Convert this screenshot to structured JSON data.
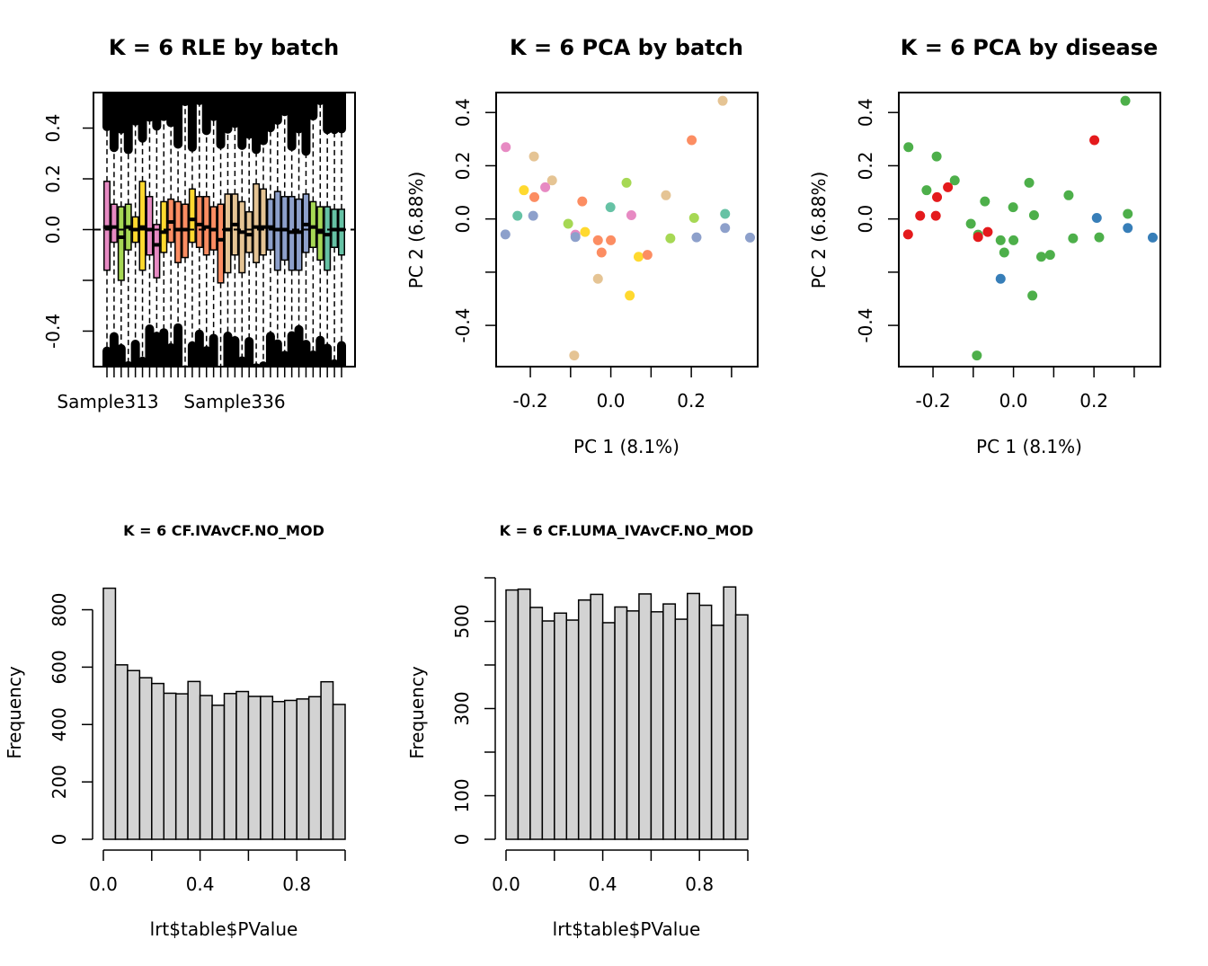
{
  "chart_data": [
    {
      "type": "boxplot",
      "title": "K = 6 RLE by batch",
      "xlabel": "",
      "ylabel": "",
      "ylim": [
        -0.54,
        0.54
      ],
      "yticks": [
        -0.4,
        -0.2,
        0.0,
        0.2,
        0.4
      ],
      "ytick_labels": [
        "-0.4",
        "",
        "0.0",
        "0.2",
        "0.4"
      ],
      "xtick_labels": [
        "Sample313",
        "Sample336"
      ],
      "reference_line": 0.0,
      "boxes": [
        {
          "color": "#E78AC3",
          "q1": -0.16,
          "median": 0.01,
          "q3": 0.19
        },
        {
          "color": "#E78AC3",
          "q1": -0.05,
          "median": 0.01,
          "q3": 0.1
        },
        {
          "color": "#A6D854",
          "q1": -0.2,
          "median": -0.03,
          "q3": 0.09
        },
        {
          "color": "#A6D854",
          "q1": -0.08,
          "median": 0.01,
          "q3": 0.1
        },
        {
          "color": "#FFD92F",
          "q1": -0.05,
          "median": 0.0,
          "q3": 0.05
        },
        {
          "color": "#FFD92F",
          "q1": -0.16,
          "median": 0.01,
          "q3": 0.19
        },
        {
          "color": "#E78AC3",
          "q1": -0.1,
          "median": 0.0,
          "q3": 0.13
        },
        {
          "color": "#E78AC3",
          "q1": -0.19,
          "median": -0.06,
          "q3": 0.02
        },
        {
          "color": "#FFD92F",
          "q1": -0.09,
          "median": -0.01,
          "q3": 0.11
        },
        {
          "color": "#FC8D62",
          "q1": -0.05,
          "median": 0.03,
          "q3": 0.12
        },
        {
          "color": "#FC8D62",
          "q1": -0.13,
          "median": 0.0,
          "q3": 0.11
        },
        {
          "color": "#FC8D62",
          "q1": -0.11,
          "median": 0.0,
          "q3": 0.1
        },
        {
          "color": "#FFD92F",
          "q1": -0.05,
          "median": 0.04,
          "q3": 0.16
        },
        {
          "color": "#FC8D62",
          "q1": -0.07,
          "median": 0.02,
          "q3": 0.13
        },
        {
          "color": "#FC8D62",
          "q1": -0.1,
          "median": 0.01,
          "q3": 0.13
        },
        {
          "color": "#FC8D62",
          "q1": -0.08,
          "median": 0.0,
          "q3": 0.09
        },
        {
          "color": "#FC8D62",
          "q1": -0.21,
          "median": -0.04,
          "q3": 0.1
        },
        {
          "color": "#E5C494",
          "q1": -0.17,
          "median": 0.0,
          "q3": 0.14
        },
        {
          "color": "#E5C494",
          "q1": -0.1,
          "median": 0.02,
          "q3": 0.14
        },
        {
          "color": "#E5C494",
          "q1": -0.17,
          "median": -0.01,
          "q3": 0.11
        },
        {
          "color": "#E5C494",
          "q1": -0.09,
          "median": -0.02,
          "q3": 0.07
        },
        {
          "color": "#E5C494",
          "q1": -0.13,
          "median": 0.01,
          "q3": 0.18
        },
        {
          "color": "#E5C494",
          "q1": -0.1,
          "median": 0.01,
          "q3": 0.16
        },
        {
          "color": "#8DA0CB",
          "q1": -0.08,
          "median": 0.01,
          "q3": 0.12
        },
        {
          "color": "#8DA0CB",
          "q1": -0.16,
          "median": 0.0,
          "q3": 0.15
        },
        {
          "color": "#8DA0CB",
          "q1": -0.12,
          "median": 0.0,
          "q3": 0.13
        },
        {
          "color": "#8DA0CB",
          "q1": -0.16,
          "median": -0.01,
          "q3": 0.13
        },
        {
          "color": "#8DA0CB",
          "q1": -0.16,
          "median": -0.01,
          "q3": 0.12
        },
        {
          "color": "#8DA0CB",
          "q1": -0.09,
          "median": 0.02,
          "q3": 0.14
        },
        {
          "color": "#A6D854",
          "q1": -0.07,
          "median": 0.01,
          "q3": 0.11
        },
        {
          "color": "#A6D854",
          "q1": -0.12,
          "median": -0.01,
          "q3": 0.09
        },
        {
          "color": "#66C2A5",
          "q1": -0.16,
          "median": -0.02,
          "q3": 0.09
        },
        {
          "color": "#66C2A5",
          "q1": -0.07,
          "median": 0.0,
          "q3": 0.08
        },
        {
          "color": "#66C2A5",
          "q1": -0.1,
          "median": 0.0,
          "q3": 0.08
        }
      ]
    },
    {
      "type": "scatter",
      "title": "K = 6 PCA by batch",
      "xlabel": "PC 1 (8.1%)",
      "ylabel": "PC 2 (6.88%)",
      "xlim": [
        -0.285,
        0.365
      ],
      "ylim": [
        -0.555,
        0.475
      ],
      "xticks": [
        -0.2,
        0.0,
        0.2
      ],
      "xtick_labels": [
        "-0.2",
        "0.0",
        "0.2"
      ],
      "yticks": [
        -0.4,
        -0.2,
        0.0,
        0.2,
        0.4
      ],
      "ytick_labels": [
        "-0.4",
        "",
        "0.0",
        "0.2",
        "0.4"
      ],
      "points": [
        {
          "x": 0.278,
          "y": 0.444,
          "color": "#E5C494"
        },
        {
          "x": 0.201,
          "y": 0.296,
          "color": "#FC8D62"
        },
        {
          "x": -0.261,
          "y": 0.27,
          "color": "#E78AC3"
        },
        {
          "x": -0.191,
          "y": 0.235,
          "color": "#E5C494"
        },
        {
          "x": -0.146,
          "y": 0.145,
          "color": "#E5C494"
        },
        {
          "x": 0.039,
          "y": 0.136,
          "color": "#A6D854"
        },
        {
          "x": -0.216,
          "y": 0.108,
          "color": "#FFD92F"
        },
        {
          "x": -0.163,
          "y": 0.119,
          "color": "#E78AC3"
        },
        {
          "x": -0.19,
          "y": 0.082,
          "color": "#FC8D62"
        },
        {
          "x": 0.137,
          "y": 0.089,
          "color": "#E5C494"
        },
        {
          "x": -0.071,
          "y": 0.066,
          "color": "#FC8D62"
        },
        {
          "x": -0.001,
          "y": 0.044,
          "color": "#66C2A5"
        },
        {
          "x": -0.232,
          "y": 0.012,
          "color": "#66C2A5"
        },
        {
          "x": -0.193,
          "y": 0.012,
          "color": "#8DA0CB"
        },
        {
          "x": 0.051,
          "y": 0.014,
          "color": "#E78AC3"
        },
        {
          "x": 0.207,
          "y": 0.004,
          "color": "#A6D854"
        },
        {
          "x": 0.284,
          "y": 0.019,
          "color": "#66C2A5"
        },
        {
          "x": -0.106,
          "y": -0.018,
          "color": "#A6D854"
        },
        {
          "x": -0.262,
          "y": -0.058,
          "color": "#8DA0CB"
        },
        {
          "x": -0.088,
          "y": -0.059,
          "color": "#E78AC3"
        },
        {
          "x": -0.088,
          "y": -0.068,
          "color": "#8DA0CB"
        },
        {
          "x": -0.064,
          "y": -0.049,
          "color": "#FFD92F"
        },
        {
          "x": -0.032,
          "y": -0.08,
          "color": "#FC8D62"
        },
        {
          "x": 0.0,
          "y": -0.08,
          "color": "#FC8D62"
        },
        {
          "x": -0.023,
          "y": -0.126,
          "color": "#FC8D62"
        },
        {
          "x": 0.148,
          "y": -0.073,
          "color": "#A6D854"
        },
        {
          "x": 0.213,
          "y": -0.069,
          "color": "#8DA0CB"
        },
        {
          "x": 0.284,
          "y": -0.034,
          "color": "#8DA0CB"
        },
        {
          "x": 0.346,
          "y": -0.07,
          "color": "#8DA0CB"
        },
        {
          "x": 0.069,
          "y": -0.142,
          "color": "#FFD92F"
        },
        {
          "x": 0.091,
          "y": -0.135,
          "color": "#FC8D62"
        },
        {
          "x": -0.032,
          "y": -0.225,
          "color": "#E5C494"
        },
        {
          "x": 0.047,
          "y": -0.288,
          "color": "#FFD92F"
        },
        {
          "x": -0.091,
          "y": -0.513,
          "color": "#E5C494"
        }
      ]
    },
    {
      "type": "scatter",
      "title": "K = 6 PCA by disease",
      "xlabel": "PC 1 (8.1%)",
      "ylabel": "PC 2 (6.88%)",
      "xlim": [
        -0.285,
        0.365
      ],
      "ylim": [
        -0.555,
        0.475
      ],
      "xticks": [
        -0.2,
        0.0,
        0.2
      ],
      "xtick_labels": [
        "-0.2",
        "0.0",
        "0.2"
      ],
      "yticks": [
        -0.4,
        -0.2,
        0.0,
        0.2,
        0.4
      ],
      "ytick_labels": [
        "-0.4",
        "",
        "0.0",
        "0.2",
        "0.4"
      ],
      "points": [
        {
          "x": 0.278,
          "y": 0.444,
          "color": "#4DAF4A"
        },
        {
          "x": 0.201,
          "y": 0.296,
          "color": "#E41A1C"
        },
        {
          "x": -0.261,
          "y": 0.27,
          "color": "#4DAF4A"
        },
        {
          "x": -0.191,
          "y": 0.235,
          "color": "#4DAF4A"
        },
        {
          "x": -0.146,
          "y": 0.145,
          "color": "#4DAF4A"
        },
        {
          "x": 0.039,
          "y": 0.136,
          "color": "#4DAF4A"
        },
        {
          "x": -0.216,
          "y": 0.108,
          "color": "#4DAF4A"
        },
        {
          "x": -0.163,
          "y": 0.119,
          "color": "#E41A1C"
        },
        {
          "x": -0.19,
          "y": 0.082,
          "color": "#E41A1C"
        },
        {
          "x": 0.137,
          "y": 0.089,
          "color": "#4DAF4A"
        },
        {
          "x": -0.071,
          "y": 0.066,
          "color": "#4DAF4A"
        },
        {
          "x": -0.001,
          "y": 0.044,
          "color": "#4DAF4A"
        },
        {
          "x": -0.232,
          "y": 0.012,
          "color": "#E41A1C"
        },
        {
          "x": -0.193,
          "y": 0.012,
          "color": "#E41A1C"
        },
        {
          "x": 0.051,
          "y": 0.014,
          "color": "#4DAF4A"
        },
        {
          "x": 0.207,
          "y": 0.004,
          "color": "#377EB8"
        },
        {
          "x": 0.284,
          "y": 0.019,
          "color": "#4DAF4A"
        },
        {
          "x": -0.106,
          "y": -0.018,
          "color": "#4DAF4A"
        },
        {
          "x": -0.262,
          "y": -0.058,
          "color": "#E41A1C"
        },
        {
          "x": -0.088,
          "y": -0.059,
          "color": "#4DAF4A"
        },
        {
          "x": -0.088,
          "y": -0.068,
          "color": "#E41A1C"
        },
        {
          "x": -0.064,
          "y": -0.049,
          "color": "#E41A1C"
        },
        {
          "x": -0.032,
          "y": -0.08,
          "color": "#4DAF4A"
        },
        {
          "x": 0.0,
          "y": -0.08,
          "color": "#4DAF4A"
        },
        {
          "x": -0.023,
          "y": -0.126,
          "color": "#4DAF4A"
        },
        {
          "x": 0.148,
          "y": -0.073,
          "color": "#4DAF4A"
        },
        {
          "x": 0.213,
          "y": -0.069,
          "color": "#4DAF4A"
        },
        {
          "x": 0.284,
          "y": -0.034,
          "color": "#377EB8"
        },
        {
          "x": 0.346,
          "y": -0.07,
          "color": "#377EB8"
        },
        {
          "x": 0.069,
          "y": -0.142,
          "color": "#4DAF4A"
        },
        {
          "x": 0.091,
          "y": -0.135,
          "color": "#4DAF4A"
        },
        {
          "x": -0.032,
          "y": -0.225,
          "color": "#377EB8"
        },
        {
          "x": 0.047,
          "y": -0.288,
          "color": "#4DAF4A"
        },
        {
          "x": -0.091,
          "y": -0.513,
          "color": "#4DAF4A"
        }
      ]
    },
    {
      "type": "bar",
      "subtype": "histogram",
      "title": "K = 6 CF.IVAvCF.NO_MOD",
      "xlabel": "lrt$table$PValue",
      "ylabel": "Frequency",
      "xlim": [
        0,
        1
      ],
      "ylim": [
        0,
        880
      ],
      "xticks": [
        0.0,
        0.2,
        0.4,
        0.6,
        0.8,
        1.0
      ],
      "xtick_labels": [
        "0.0",
        "",
        "0.4",
        "",
        "0.8",
        ""
      ],
      "yticks": [
        0,
        200,
        400,
        600,
        800
      ],
      "ytick_labels": [
        "0",
        "200",
        "400",
        "600",
        "800"
      ],
      "bin_width": 0.05,
      "values": [
        875,
        608,
        588,
        563,
        543,
        509,
        507,
        550,
        501,
        467,
        508,
        515,
        498,
        498,
        480,
        484,
        489,
        497,
        549,
        470
      ],
      "bar_color": "#D3D3D3"
    },
    {
      "type": "bar",
      "subtype": "histogram",
      "title": "K = 6 CF.LUMA_IVAvCF.NO_MOD",
      "xlabel": "lrt$table$PValue",
      "ylabel": "Frequency",
      "xlim": [
        0,
        1
      ],
      "ylim": [
        0,
        600
      ],
      "xticks": [
        0.0,
        0.2,
        0.4,
        0.6,
        0.8,
        1.0
      ],
      "xtick_labels": [
        "0.0",
        "",
        "0.4",
        "",
        "0.8",
        ""
      ],
      "yticks": [
        0,
        100,
        200,
        300,
        400,
        500,
        600
      ],
      "ytick_labels": [
        "0",
        "100",
        "",
        "300",
        "",
        "500",
        ""
      ],
      "bin_width": 0.05,
      "values": [
        572,
        574,
        532,
        501,
        519,
        503,
        549,
        562,
        497,
        533,
        524,
        563,
        522,
        540,
        505,
        564,
        537,
        491,
        579,
        515
      ],
      "bar_color": "#D3D3D3"
    }
  ]
}
